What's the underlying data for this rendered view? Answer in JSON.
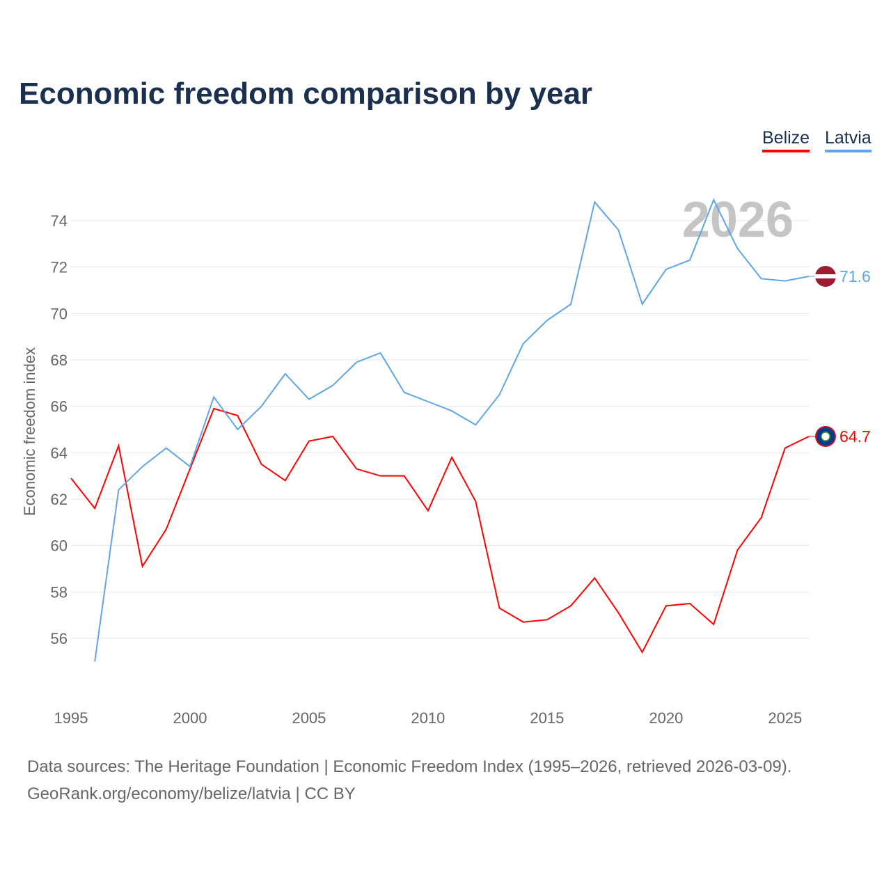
{
  "chart_data": {
    "type": "line",
    "title": "Economic freedom comparison by year",
    "xlabel": "",
    "ylabel": "Economic freedom index",
    "xlim": [
      1995,
      2026
    ],
    "ylim": [
      53.5,
      76
    ],
    "yticks": [
      56,
      58,
      60,
      62,
      64,
      66,
      68,
      70,
      72,
      74
    ],
    "xticks": [
      1995,
      2000,
      2005,
      2010,
      2015,
      2020,
      2025
    ],
    "watermark_year": "2026",
    "grid": true,
    "legend": "top-right",
    "series": [
      {
        "name": "Belize",
        "color": "#ff0000",
        "end_label": "64.7",
        "x": [
          1995,
          1996,
          1997,
          1998,
          1999,
          2000,
          2001,
          2002,
          2003,
          2004,
          2005,
          2006,
          2007,
          2008,
          2009,
          2010,
          2011,
          2012,
          2013,
          2014,
          2015,
          2016,
          2017,
          2018,
          2019,
          2020,
          2021,
          2022,
          2023,
          2024,
          2025,
          2026
        ],
        "values": [
          62.9,
          61.6,
          64.3,
          59.1,
          60.7,
          63.3,
          65.9,
          65.6,
          63.5,
          62.8,
          64.5,
          64.7,
          63.3,
          63.0,
          63.0,
          61.5,
          63.8,
          61.9,
          57.3,
          56.7,
          56.8,
          57.4,
          58.6,
          57.1,
          55.4,
          57.4,
          57.5,
          56.6,
          59.8,
          61.2,
          64.2,
          64.7
        ]
      },
      {
        "name": "Latvia",
        "color": "#5ea5ec",
        "end_label": "71.6",
        "x": [
          1996,
          1997,
          1998,
          1999,
          2000,
          2001,
          2002,
          2003,
          2004,
          2005,
          2006,
          2007,
          2008,
          2009,
          2010,
          2011,
          2012,
          2013,
          2014,
          2015,
          2016,
          2017,
          2018,
          2019,
          2020,
          2021,
          2022,
          2023,
          2024,
          2025,
          2026
        ],
        "values": [
          55.0,
          62.4,
          63.4,
          64.2,
          63.4,
          66.4,
          65.0,
          66.0,
          67.4,
          66.3,
          66.9,
          67.9,
          68.3,
          66.6,
          66.2,
          65.8,
          65.2,
          66.5,
          68.7,
          69.7,
          70.4,
          74.8,
          73.6,
          70.4,
          71.9,
          72.3,
          74.9,
          72.8,
          71.5,
          71.4,
          71.6
        ]
      }
    ]
  },
  "source_line1": "Data sources: The Heritage Foundation | Economic Freedom Index (1995–2026, retrieved 2026-03-09).",
  "source_line2": "GeoRank.org/economy/belize/latvia | CC BY"
}
